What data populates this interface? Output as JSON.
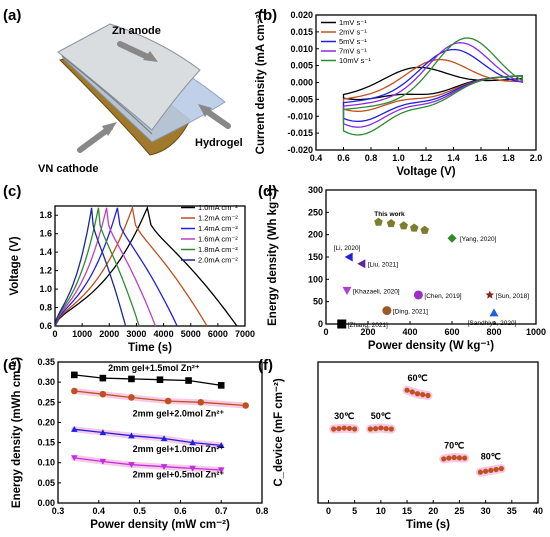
{
  "panels": {
    "a": "(a)",
    "b": "(b)",
    "c": "(c)",
    "d": "(d)",
    "e": "(e)",
    "f": "(f)"
  },
  "illustration": {
    "zn_anode": "Zn anode",
    "hydrogel": "Hydrogel",
    "vn_cathode": "VN cathode"
  },
  "chart_data": [
    {
      "id": "b",
      "type": "line",
      "xlabel": "Voltage (V)",
      "ylabel": "Current density (mA cm⁻²)",
      "xlim": [
        0.4,
        2.0
      ],
      "ylim": [
        -0.02,
        0.02
      ],
      "xticks": [
        "0.4",
        "0.6",
        "0.8",
        "1.0",
        "1.2",
        "1.4",
        "1.6",
        "1.8",
        "2.0"
      ],
      "yticks": [
        "-0.020",
        "-0.015",
        "-0.010",
        "-0.005",
        "0.000",
        "0.005",
        "0.010",
        "0.015",
        "0.020"
      ],
      "legend_position": "top-left",
      "series": [
        {
          "name": "1mV s⁻¹",
          "color": "#000000",
          "peak_x": 1.15,
          "peak": 0.0045,
          "min": -0.005
        },
        {
          "name": "2mV s⁻¹",
          "color": "#c0501e",
          "peak_x": 1.3,
          "peak": 0.0068,
          "min": -0.0085
        },
        {
          "name": "5mV s⁻¹",
          "color": "#2020e0",
          "peak_x": 1.4,
          "peak": 0.0098,
          "min": -0.0115
        },
        {
          "name": "7mV s⁻¹",
          "color": "#8a2be2",
          "peak_x": 1.45,
          "peak": 0.0118,
          "min": -0.0132
        },
        {
          "name": "10mV s⁻¹",
          "color": "#2e8b2e",
          "peak_x": 1.5,
          "peak": 0.0132,
          "min": -0.0155
        }
      ]
    },
    {
      "id": "c",
      "type": "line",
      "xlabel": "Time (s)",
      "ylabel": "Voltage (V)",
      "xlim": [
        0,
        7000
      ],
      "ylim": [
        0.6,
        1.9
      ],
      "xticks": [
        "0",
        "1000",
        "2000",
        "3000",
        "4000",
        "5000",
        "6000",
        "7000"
      ],
      "yticks": [
        "0.6",
        "0.8",
        "1.0",
        "1.2",
        "1.4",
        "1.6",
        "1.8"
      ],
      "legend_position": "top-right",
      "series": [
        {
          "name": "1.0mA cm⁻²",
          "color": "#000000",
          "charge_end": 3400,
          "discharge_end": 6700
        },
        {
          "name": "1.2mA cm⁻²",
          "color": "#c0501e",
          "charge_end": 2850,
          "discharge_end": 5600
        },
        {
          "name": "1.4mA cm⁻²",
          "color": "#2020e0",
          "charge_end": 2300,
          "discharge_end": 4500
        },
        {
          "name": "1.6mA cm⁻²",
          "color": "#c040c0",
          "charge_end": 1900,
          "discharge_end": 3700
        },
        {
          "name": "1.8mA cm⁻²",
          "color": "#2e8b2e",
          "charge_end": 1600,
          "discharge_end": 3100
        },
        {
          "name": "2.0mA cm⁻²",
          "color": "#1a2a8a",
          "charge_end": 1350,
          "discharge_end": 2600
        }
      ]
    },
    {
      "id": "d",
      "type": "scatter",
      "xlabel": "Power density (W kg⁻¹)",
      "ylabel": "Energy density (Wh kg⁻¹)",
      "xlim": [
        0,
        1000
      ],
      "ylim": [
        0,
        300
      ],
      "xticks": [
        "0",
        "200",
        "400",
        "600",
        "800",
        "1000"
      ],
      "yticks": [
        "0",
        "50",
        "100",
        "150",
        "200",
        "250",
        "300"
      ],
      "this_work_label": "This work",
      "this_work": {
        "color": "#7d7d2e",
        "points": [
          [
            250,
            228
          ],
          [
            310,
            225
          ],
          [
            370,
            220
          ],
          [
            420,
            215
          ],
          [
            470,
            210
          ]
        ]
      },
      "references": [
        {
          "label": "[Yang, 2020]",
          "x": 600,
          "y": 192,
          "color": "#2e8b2e",
          "marker": "diamond"
        },
        {
          "label": "[Li, 2020]",
          "x": 110,
          "y": 150,
          "color": "#2020e0",
          "marker": "triangle-left"
        },
        {
          "label": "[Liu, 2021]",
          "x": 170,
          "y": 135,
          "color": "#5a2a9a",
          "marker": "triangle-left"
        },
        {
          "label": "[Khazaeli, 2020]",
          "x": 100,
          "y": 75,
          "color": "#b040d0",
          "marker": "triangle-down"
        },
        {
          "label": "[Chen, 2019]",
          "x": 440,
          "y": 65,
          "color": "#9a30c0",
          "marker": "hexagon"
        },
        {
          "label": "[Sun, 2018]",
          "x": 780,
          "y": 65,
          "color": "#8a2020",
          "marker": "star"
        },
        {
          "label": "[Ding, 2021]",
          "x": 290,
          "y": 30,
          "color": "#9a5a2a",
          "marker": "circle"
        },
        {
          "label": "[Zhang, 2021]",
          "x": 75,
          "y": 0,
          "color": "#000000",
          "marker": "square"
        },
        {
          "label": "[Sandhiya, 2020]",
          "x": 800,
          "y": 25,
          "color": "#2060e0",
          "marker": "triangle-up"
        }
      ]
    },
    {
      "id": "e",
      "type": "line",
      "xlabel": "Power density (mW cm⁻²)",
      "ylabel": "Energy density (mWh cm⁻²)",
      "xlim": [
        0.3,
        0.8
      ],
      "ylim": [
        0.0,
        0.35
      ],
      "xticks": [
        "0.3",
        "0.4",
        "0.5",
        "0.6",
        "0.7",
        "0.8"
      ],
      "yticks": [
        "0.00",
        "0.05",
        "0.10",
        "0.15",
        "0.20",
        "0.25",
        "0.30",
        "0.35"
      ],
      "series": [
        {
          "name": "2mm gel+1.5mol Zn²⁺",
          "color": "#000000",
          "label_color": "#000000",
          "marker": "square",
          "x": [
            0.34,
            0.41,
            0.48,
            0.55,
            0.62,
            0.7
          ],
          "y": [
            0.318,
            0.31,
            0.308,
            0.306,
            0.304,
            0.292
          ]
        },
        {
          "name": "2mm gel+2.0mol Zn²⁺",
          "color": "#c0501e",
          "label_color": "#c0501e",
          "marker": "circle",
          "x": [
            0.34,
            0.41,
            0.48,
            0.57,
            0.65,
            0.76
          ],
          "y": [
            0.278,
            0.27,
            0.262,
            0.253,
            0.25,
            0.242
          ]
        },
        {
          "name": "2mm gel+1.0mol Zn²⁺",
          "color": "#2020e0",
          "label_color": "#2020e0",
          "marker": "triangle",
          "x": [
            0.34,
            0.41,
            0.48,
            0.56,
            0.63,
            0.7
          ],
          "y": [
            0.183,
            0.175,
            0.167,
            0.16,
            0.15,
            0.143
          ]
        },
        {
          "name": "2mm gel+0.5mol Zn²⁺",
          "color": "#c030e0",
          "label_color": "#c030e0",
          "marker": "triangle-down",
          "x": [
            0.34,
            0.41,
            0.48,
            0.56,
            0.63,
            0.7
          ],
          "y": [
            0.112,
            0.103,
            0.095,
            0.09,
            0.086,
            0.082
          ]
        }
      ]
    },
    {
      "id": "f",
      "type": "scatter",
      "xlabel": "Time (s)",
      "ylabel": "C_device (mF cm⁻²)",
      "xlim": [
        -2,
        40
      ],
      "ylim": [
        0,
        800
      ],
      "xticks": [
        "0",
        "5",
        "10",
        "15",
        "20",
        "25",
        "30",
        "35",
        "40"
      ],
      "yticks": [],
      "color": "#c0501e",
      "groups": [
        {
          "label": "30℃",
          "x": [
            1,
            2,
            3,
            4,
            5
          ],
          "y": [
            420,
            422,
            425,
            423,
            420
          ]
        },
        {
          "label": "50℃",
          "x": [
            8,
            9,
            10,
            11,
            12
          ],
          "y": [
            420,
            422,
            426,
            422,
            420
          ]
        },
        {
          "label": "60℃",
          "x": [
            15,
            16,
            17,
            18,
            19
          ],
          "y": [
            640,
            630,
            620,
            615,
            610
          ]
        },
        {
          "label": "70℃",
          "x": [
            22,
            23,
            24,
            25,
            26
          ],
          "y": [
            250,
            255,
            258,
            256,
            255
          ]
        },
        {
          "label": "80℃",
          "x": [
            29,
            30,
            31,
            32,
            33
          ],
          "y": [
            175,
            180,
            185,
            190,
            195
          ]
        }
      ]
    }
  ]
}
